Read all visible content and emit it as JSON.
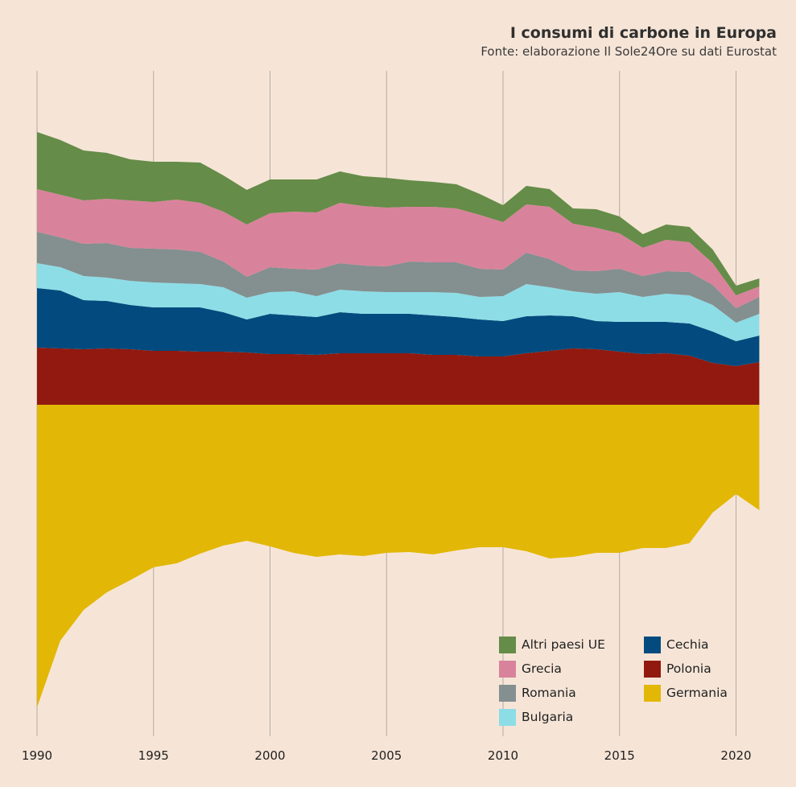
{
  "title": "I consumi di carbone in Europa",
  "subtitle": "Fonte: elaborazione Il Sole24Ore su dati Eurostat",
  "chart_data": {
    "type": "area",
    "stacking": "wiggle (streamgraph-like: Germania below baseline, other series stacked above)",
    "x": [
      1990,
      1991,
      1992,
      1993,
      1994,
      1995,
      1996,
      1997,
      1998,
      1999,
      2000,
      2001,
      2002,
      2003,
      2004,
      2005,
      2006,
      2007,
      2008,
      2009,
      2010,
      2011,
      2012,
      2013,
      2014,
      2015,
      2016,
      2017,
      2018,
      2019,
      2020,
      2021
    ],
    "xlim": [
      1990,
      2022
    ],
    "x_ticks": [
      "1990",
      "1995",
      "2000",
      "2005",
      "2010",
      "2015",
      "2020"
    ],
    "y_axis_shown": false,
    "grid": "vertical lines at x ticks",
    "legend_position": "bottom-right",
    "series": [
      {
        "name": "Germania",
        "color": "#e2b706",
        "direction": "below",
        "values": [
          376,
          293,
          255,
          233,
          218,
          202,
          197,
          185,
          175,
          169,
          176,
          184,
          189,
          186,
          188,
          184,
          183,
          186,
          181,
          177,
          177,
          182,
          191,
          189,
          184,
          184,
          178,
          178,
          172,
          134,
          111,
          131
        ]
      },
      {
        "name": "Polonia",
        "color": "#92190f",
        "values": [
          71,
          70,
          69,
          70,
          69,
          67,
          67,
          66,
          66,
          65,
          63,
          63,
          62,
          64,
          64,
          64,
          64,
          62,
          62,
          60,
          60,
          64,
          67,
          70,
          69,
          66,
          63,
          64,
          61,
          52,
          48,
          53
        ]
      },
      {
        "name": "Cechia",
        "color": "#034b7e",
        "values": [
          74,
          72,
          61,
          59,
          55,
          54,
          54,
          55,
          49,
          41,
          50,
          48,
          47,
          51,
          49,
          49,
          49,
          49,
          47,
          46,
          44,
          46,
          44,
          40,
          35,
          37,
          40,
          39,
          40,
          39,
          31,
          33
        ]
      },
      {
        "name": "Bulgaria",
        "color": "#8ddde7",
        "values": [
          31,
          29,
          30,
          29,
          30,
          31,
          30,
          29,
          31,
          27,
          27,
          30,
          26,
          28,
          28,
          27,
          27,
          29,
          30,
          28,
          31,
          40,
          35,
          31,
          34,
          37,
          31,
          35,
          35,
          33,
          23,
          27
        ]
      },
      {
        "name": "Romania",
        "color": "#848f90",
        "values": [
          39,
          37,
          40,
          43,
          41,
          42,
          42,
          40,
          32,
          26,
          31,
          28,
          33,
          33,
          32,
          32,
          38,
          37,
          38,
          35,
          33,
          39,
          35,
          26,
          28,
          29,
          26,
          28,
          29,
          25,
          18,
          21
        ]
      },
      {
        "name": "Grecia",
        "color": "#d8839b",
        "values": [
          53,
          53,
          54,
          55,
          59,
          58,
          62,
          61,
          62,
          65,
          67,
          71,
          71,
          75,
          74,
          73,
          68,
          69,
          67,
          67,
          59,
          60,
          65,
          58,
          54,
          44,
          35,
          39,
          37,
          27,
          16,
          13
        ]
      },
      {
        "name": "Altri paesi UE",
        "color": "#658c48",
        "values": [
          71,
          68,
          62,
          57,
          51,
          50,
          47,
          50,
          45,
          43,
          42,
          40,
          41,
          39,
          37,
          37,
          33,
          31,
          30,
          26,
          21,
          23,
          22,
          19,
          23,
          21,
          17,
          19,
          19,
          17,
          12,
          10
        ]
      }
    ]
  }
}
